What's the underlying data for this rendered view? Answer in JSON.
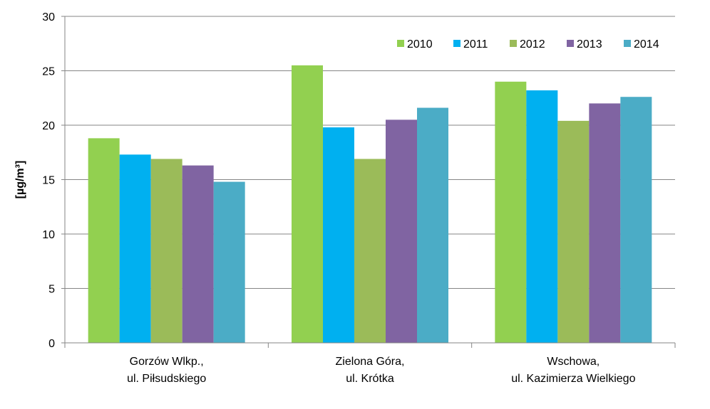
{
  "chart_data": {
    "type": "bar",
    "ylabel": "[µg/m³]",
    "ylim": [
      0,
      30
    ],
    "yticks": [
      0,
      5,
      10,
      15,
      20,
      25,
      30
    ],
    "grid": "horizontal",
    "legend_position": "top-right",
    "categories": [
      [
        "Gorzów Wlkp.,",
        "ul. Piłsudskiego"
      ],
      [
        "Zielona Góra,",
        "ul. Krótka"
      ],
      [
        "Wschowa,",
        "ul. Kazimierza Wielkiego"
      ]
    ],
    "series": [
      {
        "name": "2010",
        "color": "#92D050",
        "values": [
          18.8,
          25.5,
          24.0
        ]
      },
      {
        "name": "2011",
        "color": "#00B0F0",
        "values": [
          17.3,
          19.8,
          23.2
        ]
      },
      {
        "name": "2012",
        "color": "#9BBB59",
        "values": [
          16.9,
          16.9,
          20.4
        ]
      },
      {
        "name": "2013",
        "color": "#8064A2",
        "values": [
          16.3,
          20.5,
          22.0
        ]
      },
      {
        "name": "2014",
        "color": "#4BACC6",
        "values": [
          14.8,
          21.6,
          22.6
        ]
      }
    ]
  }
}
